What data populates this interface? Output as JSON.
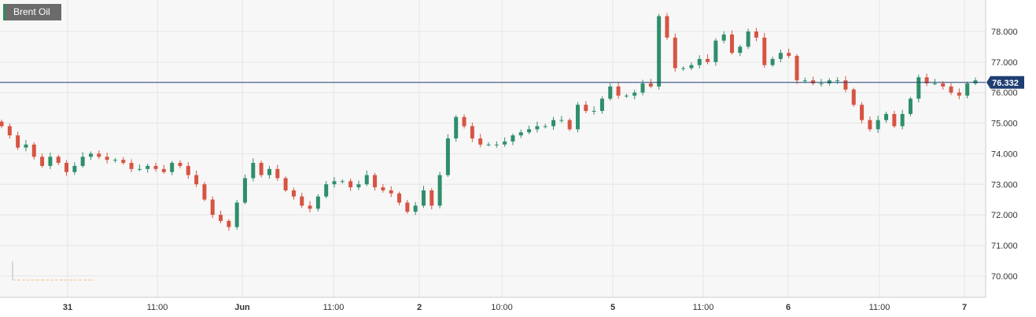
{
  "symbol": {
    "label": "Brent Oil"
  },
  "colors": {
    "up": "#2f8e6c",
    "down": "#d75442",
    "grid": "#e6e6e6",
    "price_line": "#1f3f73",
    "background": "#f7f7f7"
  },
  "chart_data": {
    "type": "candlestick",
    "title": "Brent Oil",
    "xlabel": "",
    "ylabel": "",
    "ylim": [
      69.4,
      78.9
    ],
    "y_ticks": [
      "70.000",
      "71.000",
      "72.000",
      "73.000",
      "74.000",
      "75.000",
      "76.000",
      "77.000",
      "78.000"
    ],
    "x_ticks": [
      "31",
      "11:00",
      "Jun",
      "11:00",
      "2",
      "10:00",
      "5",
      "11:00",
      "6",
      "11:00",
      "7"
    ],
    "last_price": "76.332",
    "grid": true,
    "series": [
      {
        "values": [
          74.9,
          74.6,
          74.2,
          74.3,
          73.9,
          73.6,
          73.9,
          73.7,
          73.4,
          73.6,
          73.9,
          74.0,
          73.9,
          73.8,
          73.8,
          73.7,
          73.5,
          73.5,
          73.6,
          73.5,
          73.4,
          73.7,
          73.6,
          73.3,
          73.0,
          72.5,
          72.0,
          71.8,
          71.6,
          72.4,
          73.2,
          73.7,
          73.3,
          73.5,
          73.2,
          72.8,
          72.6,
          72.3,
          72.2,
          72.6,
          73.0,
          73.1,
          73.1,
          72.9,
          73.0,
          73.3,
          72.9,
          72.8,
          72.7,
          72.4,
          72.1,
          72.3,
          72.8,
          72.3,
          73.3,
          74.5,
          75.2,
          74.9,
          74.5,
          74.3,
          74.3,
          74.3,
          74.4,
          74.6,
          74.7,
          74.8,
          74.9,
          74.9,
          75.1,
          75.1,
          74.8,
          75.6,
          75.4,
          75.4,
          75.8,
          76.2,
          75.9,
          75.9,
          76.0,
          76.3,
          76.2,
          78.5,
          77.8,
          76.8,
          76.8,
          76.9,
          77.1,
          77.0,
          77.7,
          77.9,
          77.3,
          77.5,
          78.0,
          77.8,
          76.9,
          77.1,
          77.3,
          77.2,
          76.4,
          76.4,
          76.3,
          76.3,
          76.4,
          76.4,
          76.1,
          75.6,
          75.1,
          74.8,
          75.1,
          75.3,
          74.9,
          75.3,
          75.8,
          76.5,
          76.3,
          76.3,
          76.2,
          76.0,
          75.9,
          76.3,
          76.4
        ]
      }
    ]
  }
}
